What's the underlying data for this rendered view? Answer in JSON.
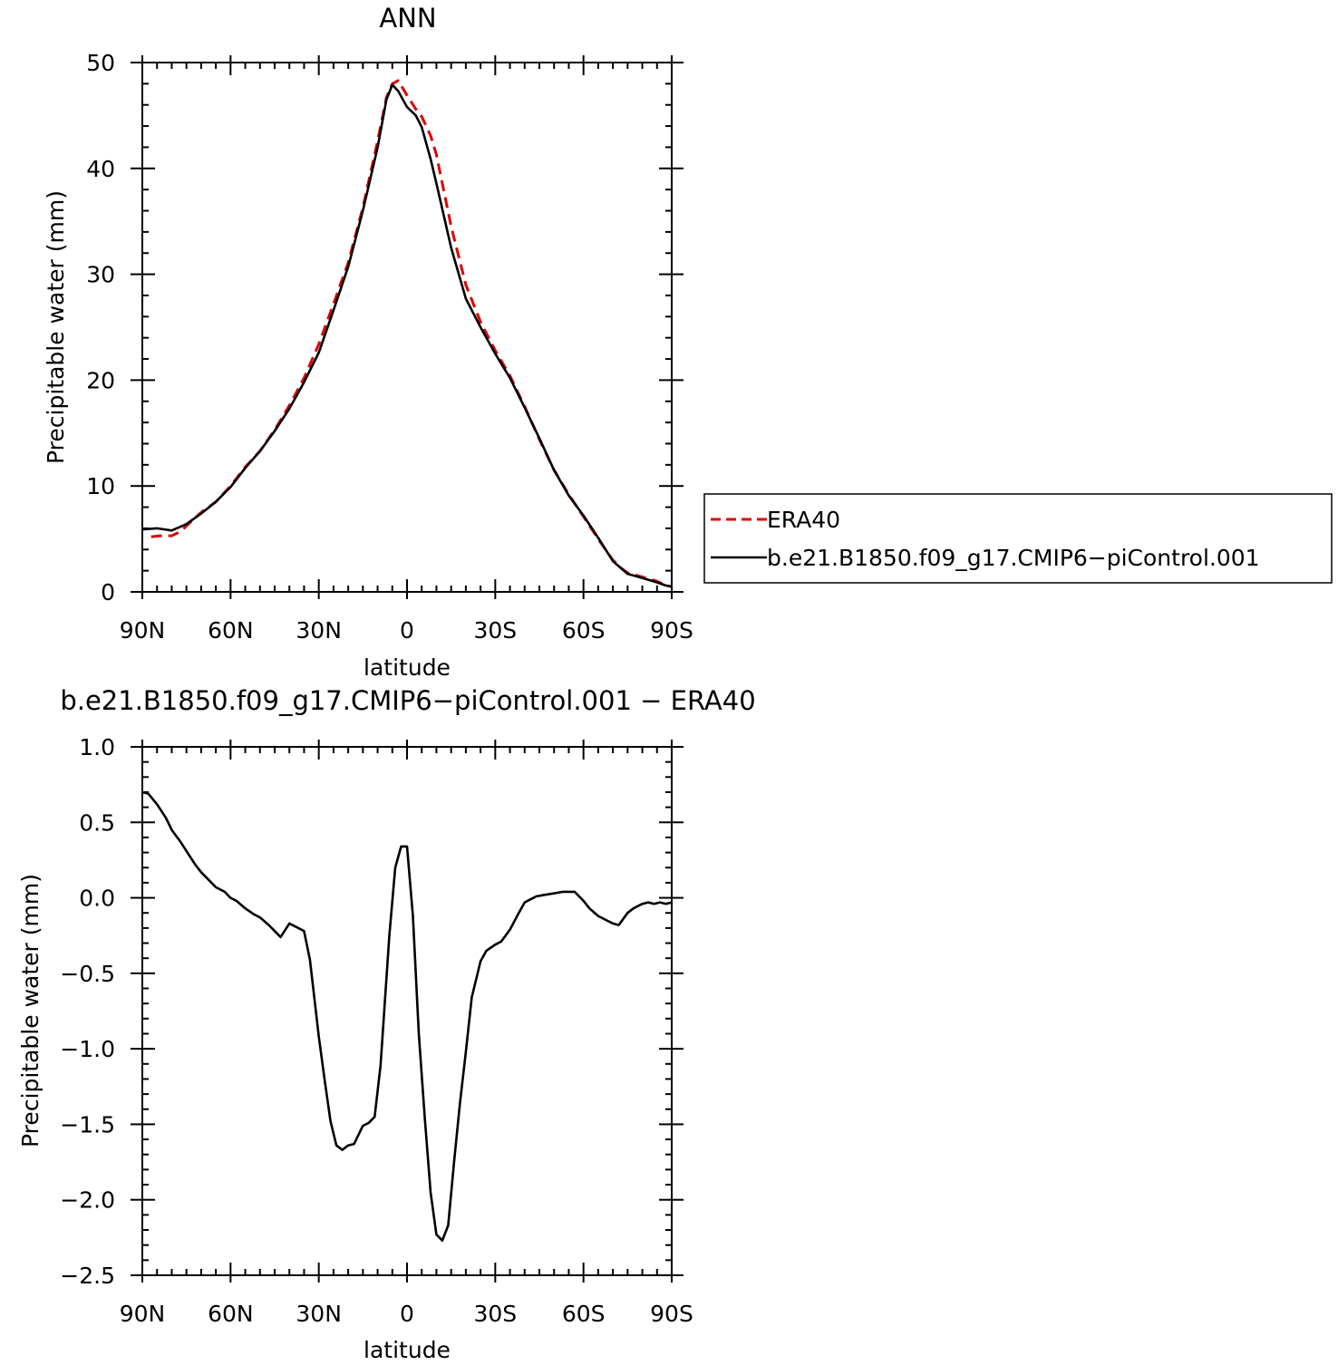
{
  "chart_data": [
    {
      "type": "line",
      "title": "ANN",
      "xlabel": "latitude",
      "ylabel": "Precipitable water (mm)",
      "xlim": [
        -90,
        90
      ],
      "ylim": [
        0,
        50
      ],
      "x_ticks": [
        -90,
        -60,
        -30,
        0,
        30,
        60,
        90
      ],
      "x_tick_labels": [
        "90N",
        "60N",
        "30N",
        "0",
        "30S",
        "60S",
        "90S"
      ],
      "y_ticks": [
        0,
        10,
        20,
        30,
        40,
        50
      ],
      "y_tick_labels": [
        "0",
        "10",
        "20",
        "30",
        "40",
        "50"
      ],
      "legend_position": "right",
      "series": [
        {
          "name": "ERA40",
          "color": "#e00000",
          "dash": "dashed",
          "x": [
            -87,
            -84,
            -80,
            -77,
            -74,
            -70,
            -65,
            -60,
            -55,
            -50,
            -45,
            -40,
            -35,
            -30,
            -25,
            -20,
            -15,
            -10,
            -7,
            -5,
            -3,
            0,
            3,
            5,
            8,
            10,
            15,
            20,
            25,
            30,
            35,
            40,
            45,
            50,
            55,
            60,
            65,
            70,
            73,
            75,
            80,
            85,
            88,
            90
          ],
          "y": [
            5.2,
            5.3,
            5.3,
            5.7,
            6.5,
            7.5,
            8.5,
            10.0,
            11.8,
            13.3,
            15.3,
            17.6,
            20.2,
            23.4,
            27.2,
            31.1,
            36.3,
            42.6,
            46.7,
            48.0,
            48.3,
            46.9,
            45.6,
            44.9,
            43.1,
            41.3,
            34.5,
            29.0,
            25.5,
            22.8,
            20.4,
            17.5,
            14.4,
            11.5,
            9.2,
            7.1,
            5.0,
            3.0,
            2.2,
            1.8,
            1.4,
            1.0,
            0.6,
            0.5
          ]
        },
        {
          "name": "b.e21.B1850.f09_g17.CMIP6−piControl.001",
          "color": "#000000",
          "dash": "solid",
          "x": [
            -90,
            -85,
            -80,
            -75,
            -70,
            -65,
            -60,
            -55,
            -50,
            -45,
            -40,
            -35,
            -30,
            -25,
            -20,
            -15,
            -10,
            -7,
            -5,
            -3,
            0,
            3,
            5,
            8,
            10,
            15,
            20,
            25,
            30,
            35,
            40,
            45,
            50,
            55,
            60,
            65,
            70,
            75,
            80,
            85,
            88,
            90
          ],
          "y": [
            5.9,
            6.0,
            5.8,
            6.4,
            7.4,
            8.5,
            9.9,
            11.7,
            13.3,
            15.2,
            17.3,
            19.8,
            22.6,
            26.6,
            30.7,
            36.0,
            42.0,
            46.5,
            47.9,
            47.3,
            45.8,
            45.0,
            43.9,
            40.9,
            38.6,
            32.5,
            27.7,
            25.0,
            22.5,
            20.2,
            17.4,
            14.5,
            11.5,
            9.1,
            7.2,
            5.1,
            2.9,
            1.7,
            1.3,
            0.9,
            0.6,
            0.5
          ]
        }
      ]
    },
    {
      "type": "line",
      "title": "b.e21.B1850.f09_g17.CMIP6−piControl.001 − ERA40",
      "xlabel": "latitude",
      "ylabel": "Precipitable water (mm)",
      "xlim": [
        -90,
        90
      ],
      "ylim": [
        -2.5,
        1.0
      ],
      "x_ticks": [
        -90,
        -60,
        -30,
        0,
        30,
        60,
        90
      ],
      "x_tick_labels": [
        "90N",
        "60N",
        "30N",
        "0",
        "30S",
        "60S",
        "90S"
      ],
      "y_ticks": [
        1.0,
        0.5,
        0.0,
        -0.5,
        -1.0,
        -1.5,
        -2.0,
        -2.5
      ],
      "y_tick_labels": [
        "1.0",
        "0.5",
        "0.0",
        "−0.5",
        "−1.0",
        "−1.5",
        "−2.0",
        "−2.5"
      ],
      "series": [
        {
          "color": "#000000",
          "dash": "solid",
          "x": [
            -90,
            -88,
            -85,
            -82,
            -80,
            -77,
            -74,
            -72,
            -70,
            -67,
            -65,
            -62,
            -60,
            -58,
            -55,
            -52,
            -50,
            -47,
            -45,
            -43,
            -40,
            -38,
            -37,
            -35,
            -33,
            -30,
            -28,
            -26,
            -24,
            -22,
            -20,
            -18,
            -15,
            -13,
            -11,
            -9,
            -6,
            -4,
            -2,
            0,
            2,
            4,
            6,
            8,
            10,
            12,
            14,
            16,
            18,
            20,
            22,
            25,
            27,
            30,
            32,
            35,
            38,
            40,
            42,
            44,
            47,
            50,
            53,
            55,
            57,
            60,
            62,
            65,
            68,
            70,
            72,
            75,
            77,
            80,
            82,
            84,
            86,
            88,
            90
          ],
          "y": [
            0.7,
            0.69,
            0.62,
            0.53,
            0.45,
            0.37,
            0.28,
            0.22,
            0.17,
            0.11,
            0.07,
            0.04,
            0.0,
            -0.02,
            -0.07,
            -0.11,
            -0.13,
            -0.18,
            -0.22,
            -0.26,
            -0.17,
            -0.19,
            -0.2,
            -0.22,
            -0.41,
            -0.92,
            -1.21,
            -1.48,
            -1.64,
            -1.67,
            -1.64,
            -1.63,
            -1.51,
            -1.49,
            -1.45,
            -1.11,
            -0.25,
            0.2,
            0.34,
            0.34,
            -0.12,
            -0.9,
            -1.45,
            -1.95,
            -2.23,
            -2.27,
            -2.17,
            -1.75,
            -1.36,
            -1.02,
            -0.66,
            -0.42,
            -0.35,
            -0.31,
            -0.29,
            -0.21,
            -0.1,
            -0.03,
            -0.01,
            0.01,
            0.02,
            0.03,
            0.04,
            0.04,
            0.04,
            -0.02,
            -0.07,
            -0.12,
            -0.15,
            -0.17,
            -0.18,
            -0.1,
            -0.07,
            -0.04,
            -0.03,
            -0.04,
            -0.03,
            -0.04,
            -0.03
          ]
        }
      ]
    }
  ]
}
